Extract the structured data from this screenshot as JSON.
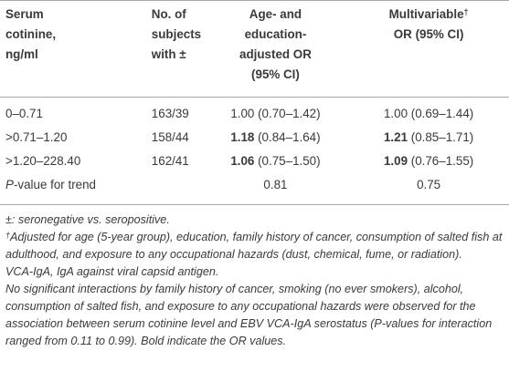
{
  "table": {
    "headers": {
      "col1_lines": [
        "Serum",
        "cotinine,",
        "ng/ml"
      ],
      "col2_lines": [
        "No. of",
        "subjects",
        "with ±"
      ],
      "col3_lines": [
        "Age- and",
        "education-",
        "adjusted OR",
        "(95% CI)"
      ],
      "col4_line1": "Multivariable",
      "col4_sup": "†",
      "col4_line2": "OR (95% CI)"
    },
    "rows": [
      {
        "label": "0–0.71",
        "n": "163/39",
        "or1_value": "1.00",
        "or1_ci": " (0.70–1.42)",
        "or1_bold": false,
        "or2_value": "1.00",
        "or2_ci": " (0.69–1.44)",
        "or2_bold": false
      },
      {
        "label": ">0.71–1.20",
        "n": "158/44",
        "or1_value": "1.18",
        "or1_ci": " (0.84–1.64)",
        "or1_bold": true,
        "or2_value": "1.21",
        "or2_ci": " (0.85–1.71)",
        "or2_bold": true
      },
      {
        "label": ">1.20–228.40",
        "n": "162/41",
        "or1_value": "1.06",
        "or1_ci": " (0.75–1.50)",
        "or1_bold": true,
        "or2_value": "1.09",
        "or2_ci": " (0.76–1.55)",
        "or2_bold": true
      }
    ],
    "trend_row": {
      "label_italic": "P",
      "label_rest": "-value for trend",
      "n": "",
      "or1": "0.81",
      "or2": "0.75"
    }
  },
  "notes": {
    "note1": "±: seronegative vs. seropositive.",
    "note2_sup": "†",
    "note2": "Adjusted for age (5-year group), education, family history of cancer, consumption of salted fish at adulthood, and exposure to any occupational hazards (dust, chemical, fume, or radiation).",
    "note3": "VCA-IgA, IgA against viral capsid antigen.",
    "note4": "No significant interactions by family history of cancer, smoking (no ever smokers), alcohol, consumption of salted fish, and exposure to any occupational hazards were observed for the association between serum cotinine level and EBV VCA-IgA serostatus (P-values for interaction ranged from 0.11 to 0.99). Bold indicate the OR values."
  }
}
